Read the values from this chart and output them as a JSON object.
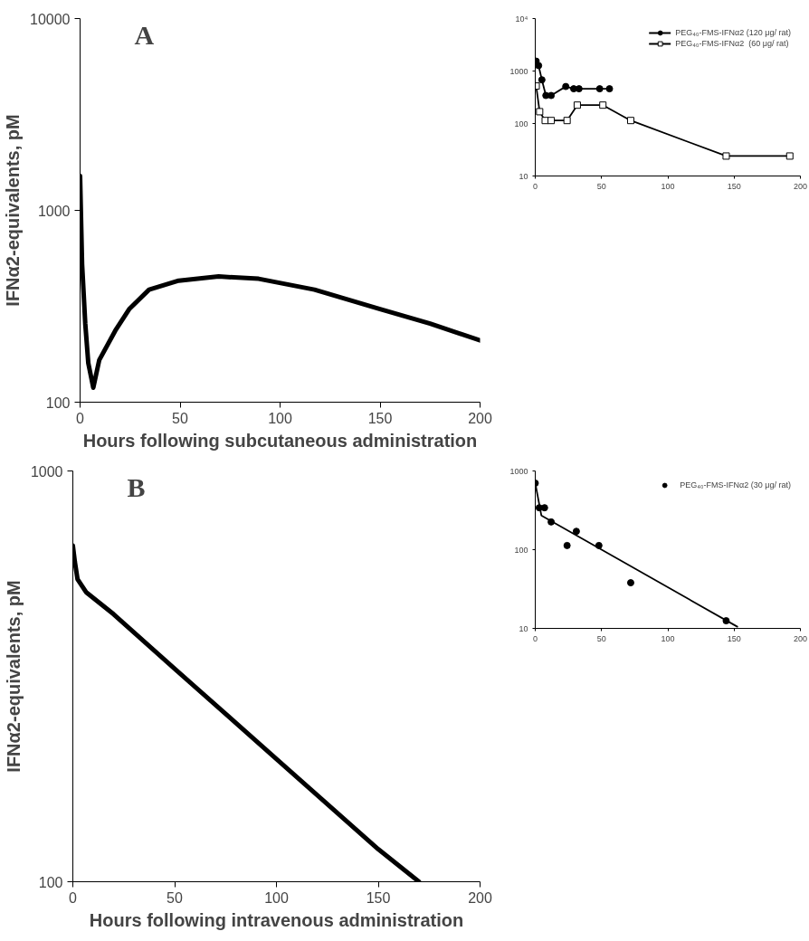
{
  "chart_data": [
    {
      "type": "line",
      "annotations": [
        "A"
      ],
      "xlabel": "Hours following subcutaneous administration",
      "ylabel": "IFNα2-equivalents, pM",
      "log": "y",
      "grid": false,
      "marker": "none",
      "xlim": [
        0,
        200
      ],
      "xticks": [
        0,
        50,
        100,
        150,
        200
      ],
      "ylim": [
        100,
        10000
      ],
      "yticks": [
        100,
        1000,
        10000
      ],
      "series": [
        {
          "color": "#000000",
          "x": [
            0,
            1,
            2.6,
            4.1,
            6.6,
            9.6,
            17.6,
            24.5,
            34.5,
            49.3,
            69.3,
            89.3,
            117.2,
            150,
            175,
            200
          ],
          "values": [
            1510,
            525,
            256,
            160,
            119,
            166,
            236,
            305,
            386,
            430,
            452,
            440,
            386,
            306,
            257,
            210
          ]
        }
      ]
    },
    {
      "type": "line",
      "log": "y",
      "grid": false,
      "legend": "top right",
      "xlim": [
        0,
        200
      ],
      "xticks": [
        0,
        50,
        100,
        150,
        200
      ],
      "ylim": [
        10,
        10000
      ],
      "yticks": [
        10,
        100,
        1000,
        {
          "value": 10000,
          "label": "10⁴"
        }
      ],
      "series": [
        {
          "name": "PEG₄₀-FMS-IFNα2 (120 μg/ rat)",
          "color": "#000000",
          "marker": "circle",
          "x": [
            0.7,
            2.5,
            5,
            8,
            12,
            23,
            29,
            33,
            48.6,
            56
          ],
          "values": [
            1540,
            1270,
            680,
            342,
            342,
            507,
            459,
            459,
            459,
            459
          ]
        },
        {
          "name": "PEG₄₀-FMS-IFNα2  (60 μg/ rat)",
          "color": "#000000",
          "marker": "square",
          "x": [
            0.7,
            3.3,
            7.5,
            12,
            24,
            31.7,
            51,
            72,
            144,
            192
          ],
          "values": [
            518,
            168,
            114,
            114,
            114,
            224,
            224,
            114,
            24,
            24
          ]
        }
      ]
    },
    {
      "type": "line",
      "annotations": [
        "B"
      ],
      "xlabel": "Hours following intravenous administration",
      "ylabel": "IFNα2-equivalents, pM",
      "log": "y",
      "grid": false,
      "marker": "none",
      "xlim": [
        0,
        200
      ],
      "xticks": [
        0,
        50,
        100,
        150,
        200
      ],
      "ylim": [
        100,
        1000
      ],
      "yticks": [
        100,
        1000
      ],
      "series": [
        {
          "color": "#000000",
          "x": [
            0,
            1,
            2.3,
            6.5,
            20,
            50,
            100,
            150,
            170
          ],
          "values": [
            658,
            600,
            545,
            507,
            448,
            330,
            199,
            120,
            100
          ]
        }
      ]
    },
    {
      "type": "scatter",
      "log": "y",
      "grid": false,
      "legend": "top right",
      "xlim": [
        0,
        200
      ],
      "xticks": [
        0,
        50,
        100,
        150,
        200
      ],
      "ylim": [
        10,
        1000
      ],
      "yticks": [
        10,
        100,
        1000
      ],
      "series": [
        {
          "name": "PEG₄₀-FMS-IFNα2 (30 μg/ rat)",
          "color": "#000000",
          "marker": "circle",
          "x": [
            0,
            3,
            7,
            12,
            24,
            31,
            48,
            72,
            144
          ],
          "values": [
            700,
            341,
            341,
            225,
            113,
            171,
            113,
            38,
            12.5
          ]
        },
        {
          "type": "line",
          "color": "#000000",
          "marker": "none",
          "x": [
            0,
            4.6,
            152.4
          ],
          "values": [
            700,
            272,
            10.5
          ]
        }
      ]
    }
  ]
}
